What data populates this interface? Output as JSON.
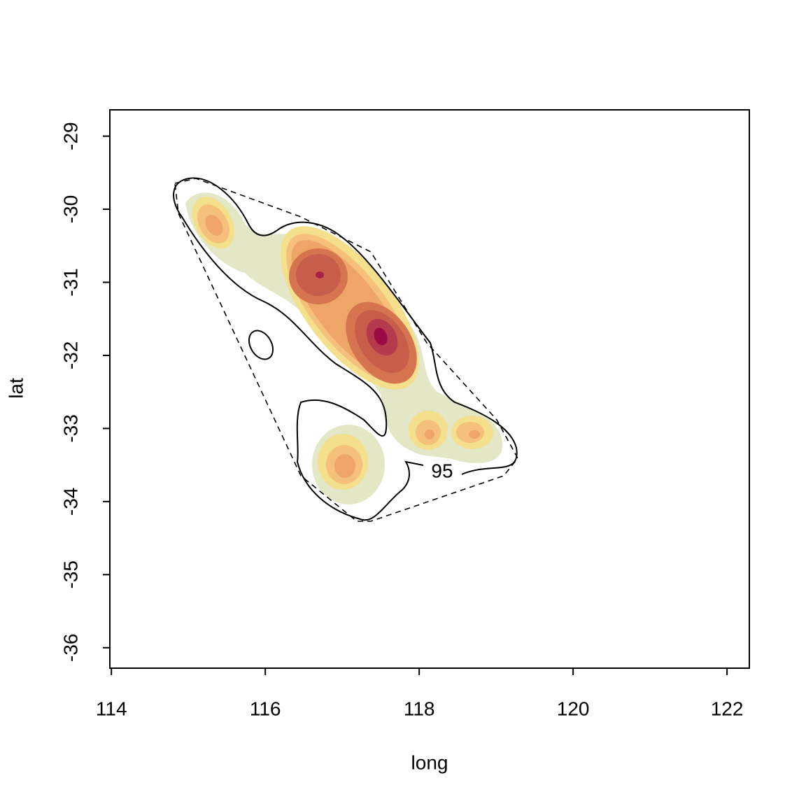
{
  "chart_data": {
    "type": "contour",
    "x_label": "long",
    "y_label": "lat",
    "xlim": [
      113.98,
      122.29
    ],
    "ylim": [
      -36.28,
      -28.64
    ],
    "xticks": [
      114,
      116,
      118,
      120,
      122
    ],
    "yticks": [
      -29,
      -30,
      -31,
      -32,
      -33,
      -34,
      -35,
      -36
    ],
    "annotations": [
      "95"
    ]
  }
}
